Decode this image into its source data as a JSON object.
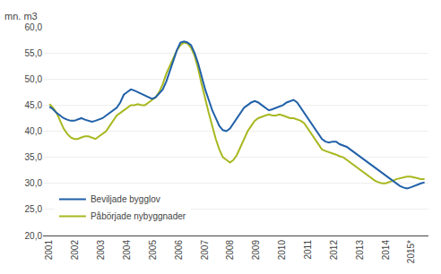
{
  "chart_data": {
    "type": "line",
    "ylabel": "mn. m3",
    "x": [
      2001.0,
      2001.1368,
      2001.2736,
      2001.4104,
      2001.5472,
      2001.684,
      2001.8208,
      2001.9575,
      2002.0943,
      2002.2311,
      2002.3679,
      2002.5047,
      2002.6415,
      2002.7783,
      2002.9151,
      2003.0519,
      2003.1887,
      2003.3255,
      2003.4623,
      2003.5991,
      2003.7358,
      2003.8726,
      2004.0094,
      2004.1462,
      2004.283,
      2004.4198,
      2004.5566,
      2004.6934,
      2004.8302,
      2004.967,
      2005.1038,
      2005.2406,
      2005.3774,
      2005.5142,
      2005.6509,
      2005.7877,
      2005.9245,
      2006.0613,
      2006.1981,
      2006.3349,
      2006.4717,
      2006.6085,
      2006.7453,
      2006.8821,
      2007.0189,
      2007.1557,
      2007.2925,
      2007.4292,
      2007.566,
      2007.7028,
      2007.8396,
      2007.9764,
      2008.1132,
      2008.25,
      2008.3868,
      2008.5236,
      2008.6604,
      2008.7972,
      2008.934,
      2009.0708,
      2009.2075,
      2009.3443,
      2009.4811,
      2009.6179,
      2009.7547,
      2009.8915,
      2010.0283,
      2010.1651,
      2010.3019,
      2010.4387,
      2010.5755,
      2010.7123,
      2010.8491,
      2010.9858,
      2011.1226,
      2011.2594,
      2011.3962,
      2011.533,
      2011.6698,
      2011.8066,
      2011.9434,
      2012.0802,
      2012.217,
      2012.3538,
      2012.4906,
      2012.6274,
      2012.7642,
      2012.9009,
      2013.0377,
      2013.1745,
      2013.3113,
      2013.4481,
      2013.5849,
      2013.7217,
      2013.8585,
      2013.9953,
      2014.1321,
      2014.2689,
      2014.4057,
      2014.5425,
      2014.6792,
      2014.816,
      2014.9528,
      2015.0896,
      2015.2264,
      2015.3632,
      2015.5
    ],
    "series": [
      {
        "name": "Påbörjade nybyggnader",
        "color": "#a8b820",
        "values": [
          45.2,
          44.5,
          43.5,
          42.0,
          40.5,
          39.5,
          38.8,
          38.5,
          38.5,
          38.8,
          39.0,
          39.0,
          38.8,
          38.5,
          39.0,
          39.5,
          40.0,
          41.0,
          42.0,
          43.0,
          43.5,
          44.0,
          44.5,
          45.0,
          45.0,
          45.2,
          45.0,
          45.0,
          45.5,
          46.0,
          46.5,
          47.5,
          49.0,
          51.0,
          52.5,
          54.0,
          55.5,
          56.5,
          57.0,
          56.8,
          56.0,
          54.5,
          52.0,
          49.0,
          46.0,
          43.5,
          41.0,
          38.5,
          36.5,
          35.0,
          34.5,
          34.0,
          34.5,
          35.5,
          37.0,
          38.5,
          40.0,
          41.0,
          42.0,
          42.5,
          42.8,
          43.0,
          43.2,
          43.0,
          43.0,
          43.2,
          43.0,
          42.8,
          42.5,
          42.5,
          42.2,
          42.0,
          41.5,
          40.5,
          39.5,
          38.5,
          37.5,
          36.5,
          36.2,
          36.0,
          35.8,
          35.5,
          35.2,
          35.0,
          34.5,
          34.0,
          33.5,
          33.0,
          32.5,
          32.0,
          31.5,
          31.0,
          30.5,
          30.2,
          30.0,
          30.0,
          30.2,
          30.5,
          30.8,
          31.0,
          31.2,
          31.3,
          31.3,
          31.2,
          31.0,
          30.8,
          30.8
        ]
      },
      {
        "name": "Beviljade bygglov",
        "color": "#2060a8",
        "values": [
          44.7,
          44.2,
          43.5,
          43.0,
          42.5,
          42.2,
          42.0,
          42.0,
          42.3,
          42.5,
          42.2,
          42.0,
          41.8,
          42.0,
          42.3,
          42.5,
          43.0,
          43.5,
          44.0,
          44.5,
          45.5,
          47.0,
          47.5,
          48.0,
          47.8,
          47.5,
          47.2,
          46.8,
          46.5,
          46.2,
          46.5,
          47.2,
          48.0,
          49.5,
          51.5,
          53.5,
          55.5,
          57.0,
          57.2,
          57.0,
          56.5,
          55.0,
          53.0,
          50.5,
          48.0,
          46.0,
          44.0,
          42.5,
          41.0,
          40.2,
          40.0,
          40.5,
          41.5,
          42.5,
          43.5,
          44.5,
          45.0,
          45.5,
          45.8,
          45.5,
          45.0,
          44.5,
          44.0,
          44.2,
          44.5,
          44.8,
          45.0,
          45.5,
          45.8,
          46.0,
          45.5,
          44.5,
          43.5,
          42.5,
          41.5,
          40.5,
          39.5,
          38.5,
          38.0,
          37.8,
          38.0,
          38.0,
          37.5,
          37.2,
          37.0,
          36.5,
          36.0,
          35.5,
          35.0,
          34.5,
          34.0,
          33.5,
          33.0,
          32.5,
          32.0,
          31.5,
          31.0,
          30.5,
          30.0,
          29.5,
          29.2,
          29.0,
          29.2,
          29.5,
          29.8,
          30.0,
          30.2
        ]
      }
    ],
    "xlim": [
      2000.75,
      2015.65
    ],
    "xticks": [
      2001,
      2002,
      2003,
      2004,
      2005,
      2006,
      2007,
      2008,
      2009,
      2010,
      2011,
      2012,
      2013,
      2014,
      {
        "value": 2015,
        "label": "2015*"
      }
    ],
    "ylim": [
      20.0,
      60.0
    ],
    "yticks": [
      {
        "value": 20.0,
        "label": "20,0"
      },
      {
        "value": 25.0,
        "label": "25,0"
      },
      {
        "value": 30.0,
        "label": "30,0"
      },
      {
        "value": 35.0,
        "label": "35,0"
      },
      {
        "value": 40.0,
        "label": "40,0"
      },
      {
        "value": 45.0,
        "label": "45,0"
      },
      {
        "value": 50.0,
        "label": "50,0"
      },
      {
        "value": 55.0,
        "label": "55,0"
      },
      {
        "value": 60.0,
        "label": "60,0"
      }
    ],
    "grid": true,
    "legend": "lower left"
  }
}
